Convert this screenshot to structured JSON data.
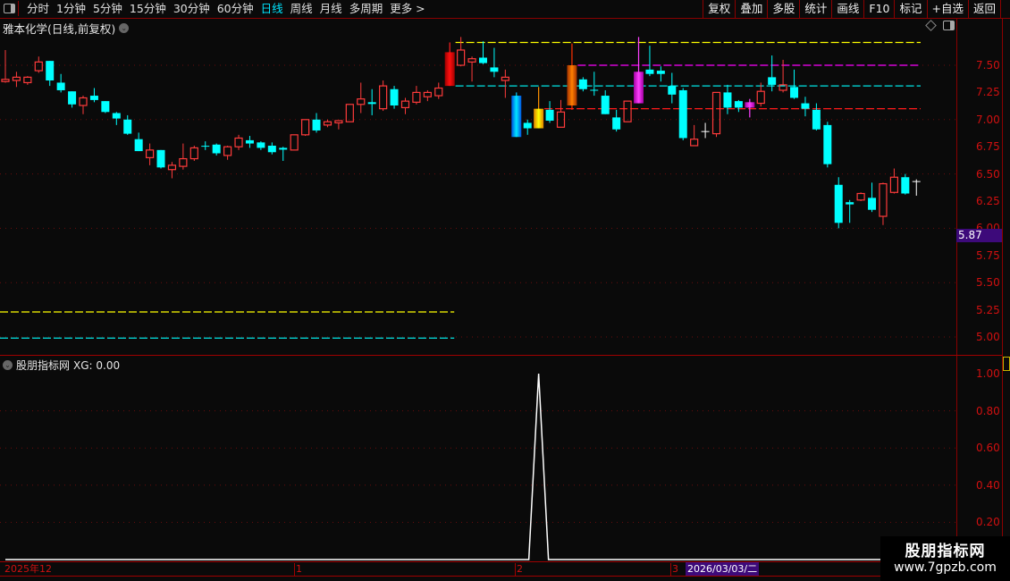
{
  "toolbar": {
    "periods": [
      "分时",
      "1分钟",
      "5分钟",
      "15分钟",
      "30分钟",
      "60分钟",
      "日线",
      "周线",
      "月线",
      "多周期",
      "更多 >"
    ],
    "active_period": "日线",
    "buttons": [
      "复权",
      "叠加",
      "多股",
      "统计",
      "画线",
      "F10",
      "标记",
      "+自选",
      "返回"
    ]
  },
  "stock": {
    "title": "雅本化学(日线,前复权)"
  },
  "price_axis": {
    "ticks": [
      "7.50",
      "7.25",
      "7.00",
      "6.75",
      "6.50",
      "6.25",
      "6.00",
      "5.75",
      "5.50",
      "5.25",
      "5.00"
    ],
    "current_price_label": "5.87"
  },
  "indicator": {
    "title": "股朋指标网",
    "value_label": "XG: 0.00",
    "ticks": [
      "1.00",
      "0.80",
      "0.60",
      "0.40",
      "0.20"
    ]
  },
  "date_axis": {
    "labels": [
      "2025年12",
      "1",
      "2",
      "3"
    ],
    "cursor_date": "2026/03/03/二"
  },
  "watermark": {
    "line1": "股朋指标网",
    "line2": "www.7gpzb.com"
  },
  "colors": {
    "up": "#ff3b3b",
    "down": "#00ffff",
    "accent": "#00e5ff",
    "axis": "#d01010",
    "cursor_bg": "#3d0a7a"
  },
  "chart_data": [
    {
      "type": "candlestick",
      "ylim": [
        4.9,
        7.85
      ],
      "grid_prices": [
        7.5,
        7.0,
        6.5,
        6.0,
        5.5,
        5.0
      ],
      "candle_fields": [
        "open",
        "high",
        "low",
        "close",
        "style"
      ],
      "candles": [
        [
          7.35,
          7.64,
          7.34,
          7.37,
          "up"
        ],
        [
          7.36,
          7.44,
          7.3,
          7.39,
          "up"
        ],
        [
          7.34,
          7.4,
          7.32,
          7.39,
          "up"
        ],
        [
          7.45,
          7.58,
          7.43,
          7.53,
          "up"
        ],
        [
          7.54,
          7.54,
          7.31,
          7.36,
          "down"
        ],
        [
          7.34,
          7.42,
          7.25,
          7.27,
          "down"
        ],
        [
          7.26,
          7.26,
          7.11,
          7.14,
          "down"
        ],
        [
          7.13,
          7.22,
          7.05,
          7.2,
          "up"
        ],
        [
          7.22,
          7.29,
          7.16,
          7.18,
          "down"
        ],
        [
          7.17,
          7.17,
          7.06,
          7.07,
          "down"
        ],
        [
          7.06,
          7.07,
          6.95,
          7.01,
          "down"
        ],
        [
          7.0,
          7.04,
          6.86,
          6.87,
          "down"
        ],
        [
          6.82,
          6.88,
          6.71,
          6.71,
          "down"
        ],
        [
          6.65,
          6.78,
          6.58,
          6.72,
          "up"
        ],
        [
          6.72,
          6.72,
          6.55,
          6.56,
          "down"
        ],
        [
          6.54,
          6.61,
          6.46,
          6.58,
          "up"
        ],
        [
          6.57,
          6.78,
          6.54,
          6.64,
          "up"
        ],
        [
          6.64,
          6.76,
          6.62,
          6.74,
          "up"
        ],
        [
          6.76,
          6.8,
          6.72,
          6.755,
          "cross"
        ],
        [
          6.77,
          6.78,
          6.67,
          6.69,
          "down"
        ],
        [
          6.67,
          6.76,
          6.63,
          6.75,
          "up"
        ],
        [
          6.75,
          6.86,
          6.72,
          6.83,
          "up"
        ],
        [
          6.81,
          6.85,
          6.74,
          6.78,
          "down"
        ],
        [
          6.79,
          6.8,
          6.72,
          6.74,
          "down"
        ],
        [
          6.76,
          6.79,
          6.68,
          6.7,
          "down"
        ],
        [
          6.74,
          6.75,
          6.62,
          6.73,
          "down"
        ],
        [
          6.72,
          6.86,
          6.72,
          6.86,
          "up"
        ],
        [
          6.86,
          7.0,
          6.85,
          7.0,
          "up"
        ],
        [
          7.0,
          7.06,
          6.88,
          6.9,
          "down"
        ],
        [
          6.95,
          7.0,
          6.93,
          6.98,
          "up"
        ],
        [
          6.97,
          6.99,
          6.91,
          6.99,
          "up"
        ],
        [
          6.98,
          7.14,
          6.98,
          7.14,
          "up"
        ],
        [
          7.14,
          7.34,
          7.06,
          7.19,
          "up"
        ],
        [
          7.16,
          7.28,
          7.04,
          7.15,
          "down"
        ],
        [
          7.1,
          7.36,
          7.08,
          7.31,
          "up"
        ],
        [
          7.28,
          7.31,
          7.1,
          7.13,
          "down"
        ],
        [
          7.11,
          7.2,
          7.05,
          7.17,
          "up"
        ],
        [
          7.16,
          7.31,
          7.14,
          7.25,
          "up"
        ],
        [
          7.21,
          7.27,
          7.17,
          7.25,
          "up"
        ],
        [
          7.22,
          7.34,
          7.19,
          7.29,
          "up"
        ],
        [
          7.31,
          7.71,
          7.31,
          7.62,
          "red-gradient"
        ],
        [
          7.5,
          7.76,
          7.49,
          7.64,
          "up"
        ],
        [
          7.53,
          7.58,
          7.35,
          7.56,
          "up"
        ],
        [
          7.57,
          7.72,
          7.51,
          7.52,
          "down"
        ],
        [
          7.48,
          7.66,
          7.39,
          7.44,
          "down"
        ],
        [
          7.36,
          7.46,
          7.2,
          7.39,
          "up"
        ],
        [
          7.22,
          7.25,
          6.84,
          6.84,
          "blue-gradient"
        ],
        [
          6.97,
          7.0,
          6.86,
          6.92,
          "down"
        ],
        [
          6.92,
          7.3,
          6.92,
          7.1,
          "yellow-gradient"
        ],
        [
          7.09,
          7.17,
          6.97,
          6.99,
          "down"
        ],
        [
          6.93,
          7.18,
          6.93,
          7.07,
          "up"
        ],
        [
          7.13,
          7.7,
          7.09,
          7.5,
          "orange-gradient"
        ],
        [
          7.37,
          7.39,
          7.26,
          7.28,
          "down"
        ],
        [
          7.28,
          7.44,
          7.22,
          7.27,
          "cross"
        ],
        [
          7.22,
          7.27,
          7.05,
          7.05,
          "down"
        ],
        [
          7.02,
          7.09,
          6.89,
          6.91,
          "down"
        ],
        [
          6.98,
          7.17,
          6.98,
          7.17,
          "up"
        ],
        [
          7.15,
          7.76,
          7.15,
          7.44,
          "magenta-gradient"
        ],
        [
          7.46,
          7.68,
          7.4,
          7.42,
          "down"
        ],
        [
          7.45,
          7.49,
          7.35,
          7.42,
          "down"
        ],
        [
          7.31,
          7.43,
          7.15,
          7.23,
          "down"
        ],
        [
          7.27,
          7.29,
          6.81,
          6.83,
          "down"
        ],
        [
          6.76,
          6.95,
          6.76,
          6.82,
          "up"
        ],
        [
          6.89,
          6.97,
          6.83,
          6.89,
          "white-cross"
        ],
        [
          6.87,
          7.25,
          6.84,
          7.25,
          "up"
        ],
        [
          7.25,
          7.32,
          7.05,
          7.11,
          "down"
        ],
        [
          7.17,
          7.18,
          7.07,
          7.11,
          "down"
        ],
        [
          7.11,
          7.19,
          7.02,
          7.16,
          "magenta-gradient"
        ],
        [
          7.15,
          7.34,
          7.12,
          7.26,
          "up"
        ],
        [
          7.39,
          7.59,
          7.26,
          7.32,
          "down"
        ],
        [
          7.27,
          7.55,
          7.25,
          7.32,
          "up"
        ],
        [
          7.3,
          7.46,
          7.19,
          7.2,
          "down"
        ],
        [
          7.15,
          7.21,
          7.03,
          7.1,
          "down"
        ],
        [
          7.09,
          7.15,
          6.9,
          6.91,
          "down"
        ],
        [
          6.95,
          6.98,
          6.56,
          6.59,
          "down"
        ],
        [
          6.4,
          6.47,
          6.0,
          6.05,
          "down"
        ],
        [
          6.24,
          6.26,
          6.05,
          6.22,
          "down"
        ],
        [
          6.26,
          6.33,
          6.25,
          6.32,
          "up"
        ],
        [
          6.28,
          6.42,
          6.15,
          6.17,
          "down"
        ],
        [
          6.11,
          6.42,
          6.03,
          6.41,
          "up"
        ],
        [
          6.33,
          6.55,
          6.32,
          6.47,
          "up"
        ],
        [
          6.47,
          6.5,
          6.31,
          6.32,
          "down"
        ],
        [
          6.43,
          6.45,
          6.3,
          6.43,
          "white-cross"
        ]
      ],
      "levels": [
        {
          "price": 7.71,
          "color": "#ffff00",
          "from_candle": 41,
          "to_candle": 83
        },
        {
          "price": 7.5,
          "color": "#ff00ff",
          "from_candle": 52,
          "to_candle": 83
        },
        {
          "price": 7.31,
          "color": "#00e5e5",
          "from_candle": 41,
          "to_candle": 83
        },
        {
          "price": 7.1,
          "color": "#ff1a1a",
          "from_candle": 49,
          "to_candle": 83
        },
        {
          "price": 5.23,
          "color": "#ffff00",
          "from_candle": 0,
          "to_candle": 40
        },
        {
          "price": 4.99,
          "color": "#00e5e5",
          "from_candle": 0,
          "to_candle": 40
        }
      ]
    },
    {
      "type": "line",
      "series": [
        {
          "name": "XG",
          "peak_candle": 48,
          "peak_value": 1.0,
          "base_value": 0.0
        }
      ],
      "ylim": [
        0,
        1.0
      ],
      "grid_values": [
        0.8,
        0.6,
        0.4,
        0.2
      ]
    }
  ]
}
